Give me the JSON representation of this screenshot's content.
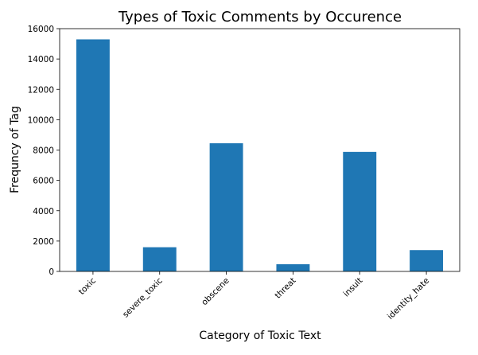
{
  "chart_data": {
    "type": "bar",
    "title": "Types of Toxic Comments by Occurence",
    "xlabel": "Category of Toxic Text",
    "ylabel": "Frequncy of Tag",
    "categories": [
      "toxic",
      "severe_toxic",
      "obscene",
      "threat",
      "insult",
      "identity_hate"
    ],
    "values": [
      15294,
      1595,
      8449,
      478,
      7877,
      1405
    ],
    "ylim": [
      0,
      16000
    ],
    "yticks": [
      0,
      2000,
      4000,
      6000,
      8000,
      10000,
      12000,
      14000,
      16000
    ],
    "grid": false,
    "bar_color": "#1f77b4"
  }
}
